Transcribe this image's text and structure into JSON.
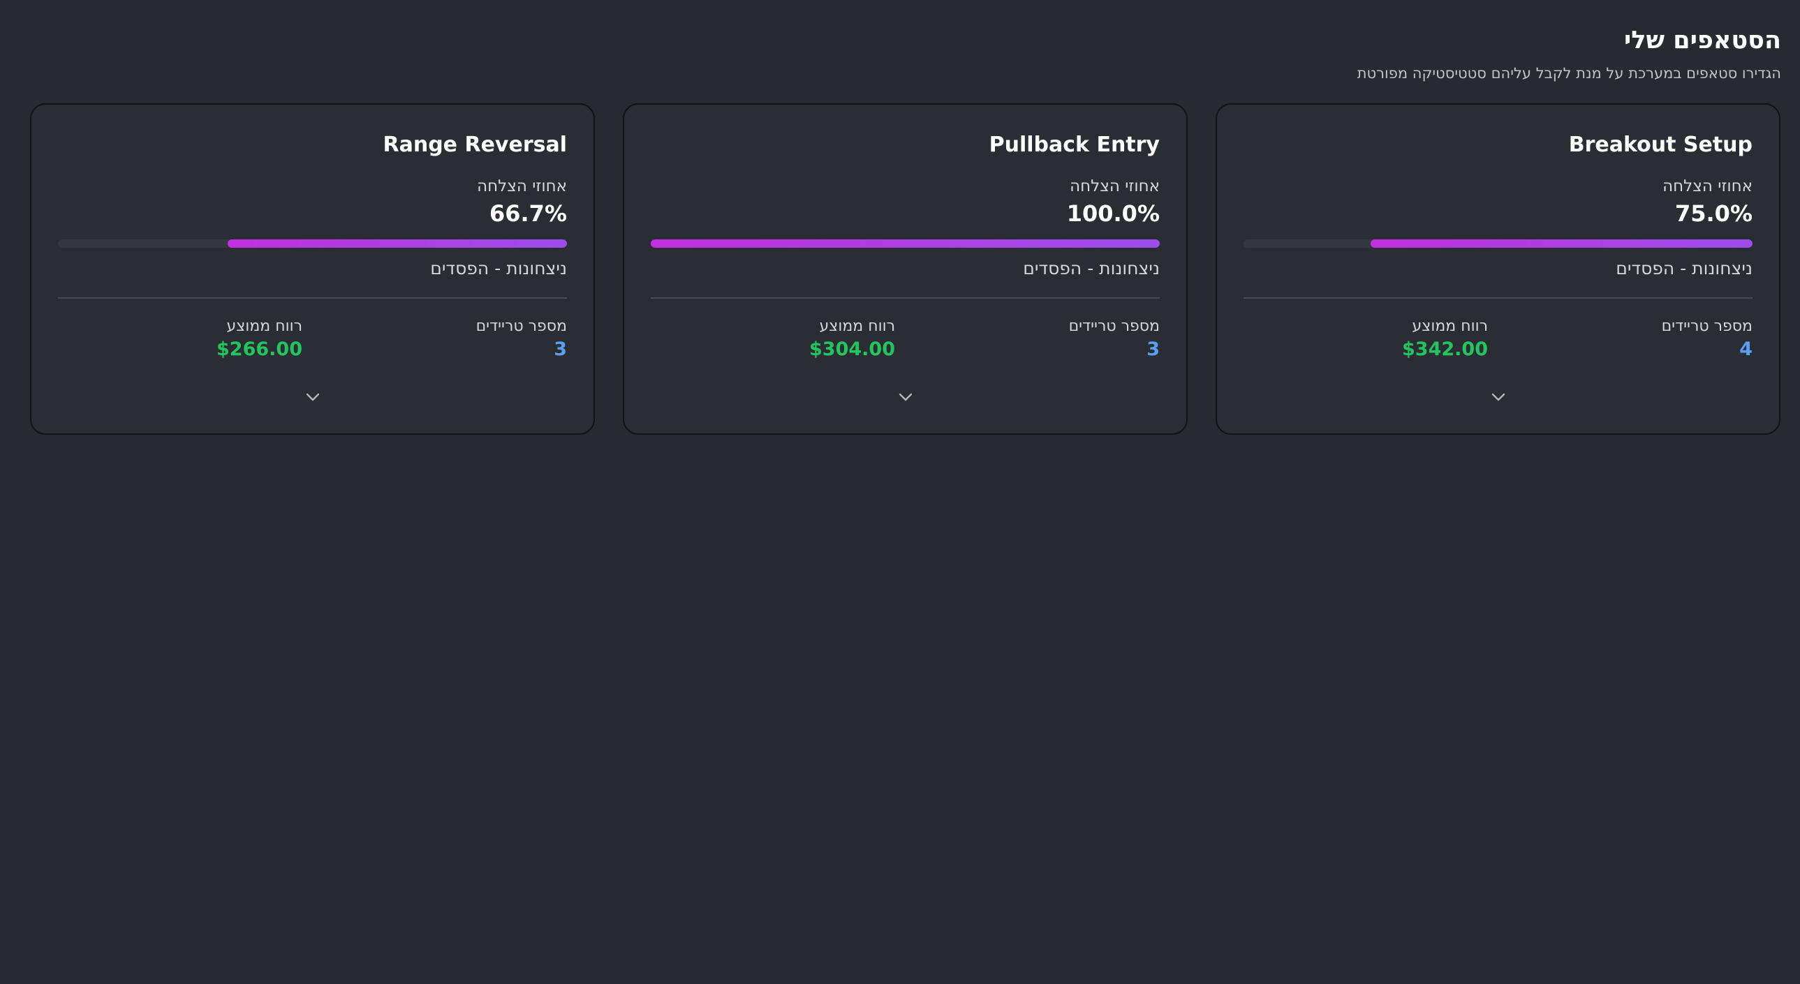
{
  "header": {
    "title": "הסטאפים שלי",
    "subtitle": "הגדירו סטאפים במערכת על מנת לקבל עליהם סטטיסטיקה מפורטת"
  },
  "colors": {
    "background": "#282a31",
    "card_background": "#2b2d34",
    "progress_gradient_start": "#c12fe0",
    "progress_gradient_end": "#9c4dec",
    "trades_value": "#5aa0f2",
    "profit_value": "#22c55e"
  },
  "cards": [
    {
      "title": "Breakout Setup",
      "success_label": "אחוזי הצלחה",
      "success_value": "75.0%",
      "success_fraction": 0.75,
      "wins_losses_label": "ניצחונות - הפסדים",
      "trades_label": "מספר טריידים",
      "trades_value": "4",
      "profit_label": "רווח ממוצע",
      "profit_value": "$342.00",
      "expand_icon": "chevron-down-icon"
    },
    {
      "title": "Pullback Entry",
      "success_label": "אחוזי הצלחה",
      "success_value": "100.0%",
      "success_fraction": 1.0,
      "wins_losses_label": "ניצחונות - הפסדים",
      "trades_label": "מספר טריידים",
      "trades_value": "3",
      "profit_label": "רווח ממוצע",
      "profit_value": "$304.00",
      "expand_icon": "chevron-down-icon"
    },
    {
      "title": "Range Reversal",
      "success_label": "אחוזי הצלחה",
      "success_value": "66.7%",
      "success_fraction": 0.667,
      "wins_losses_label": "ניצחונות - הפסדים",
      "trades_label": "מספר טריידים",
      "trades_value": "3",
      "profit_label": "רווח ממוצע",
      "profit_value": "$266.00",
      "expand_icon": "chevron-down-icon"
    }
  ]
}
